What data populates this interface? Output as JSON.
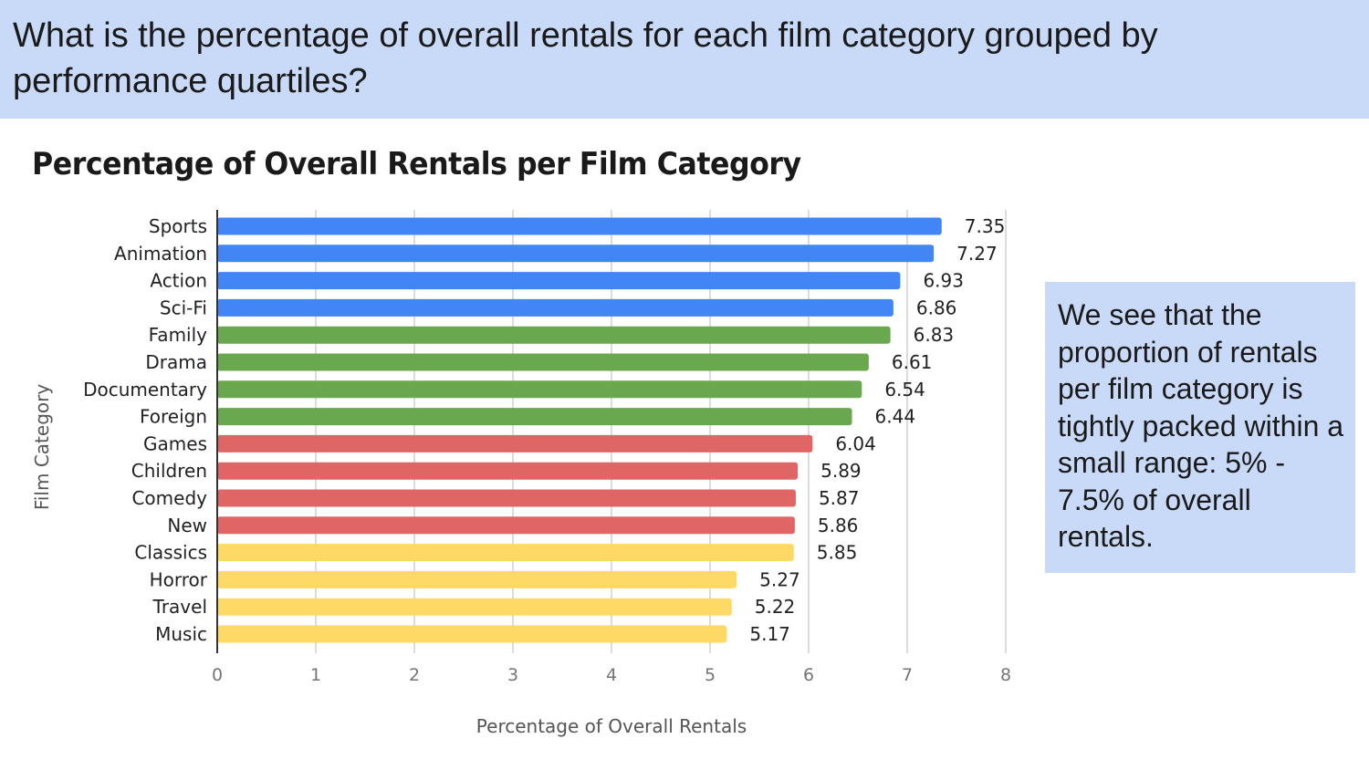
{
  "header": {
    "question": "What is the percentage of overall rentals for each film category grouped by performance quartiles?"
  },
  "note": {
    "text": "We see that the proportion of rentals per film category is tightly packed within a small range: 5% - 7.5% of overall rentals."
  },
  "chart_data": {
    "type": "bar",
    "orientation": "horizontal",
    "title": "Percentage of Overall Rentals per Film Category",
    "xlabel": "Percentage of Overall Rentals",
    "ylabel": "Film Category",
    "xlim": [
      0,
      8
    ],
    "xticks": [
      "0",
      "1",
      "2",
      "3",
      "4",
      "5",
      "6",
      "7",
      "8"
    ],
    "grid": true,
    "categories": [
      "Sports",
      "Animation",
      "Action",
      "Sci-Fi",
      "Family",
      "Drama",
      "Documentary",
      "Foreign",
      "Games",
      "Children",
      "Comedy",
      "New",
      "Classics",
      "Horror",
      "Travel",
      "Music"
    ],
    "values": [
      7.35,
      7.27,
      6.93,
      6.86,
      6.83,
      6.61,
      6.54,
      6.44,
      6.04,
      5.89,
      5.87,
      5.86,
      5.85,
      5.27,
      5.22,
      5.17
    ],
    "value_labels": [
      "7.35",
      "7.27",
      "6.93",
      "6.86",
      "6.83",
      "6.61",
      "6.54",
      "6.44",
      "6.04",
      "5.89",
      "5.87",
      "5.86",
      "5.85",
      "5.27",
      "5.22",
      "5.17"
    ],
    "bar_colors": [
      "#4285f4",
      "#4285f4",
      "#4285f4",
      "#4285f4",
      "#6aa84f",
      "#6aa84f",
      "#6aa84f",
      "#6aa84f",
      "#e06666",
      "#e06666",
      "#e06666",
      "#e06666",
      "#ffd966",
      "#ffd966",
      "#ffd966",
      "#ffd966"
    ]
  }
}
